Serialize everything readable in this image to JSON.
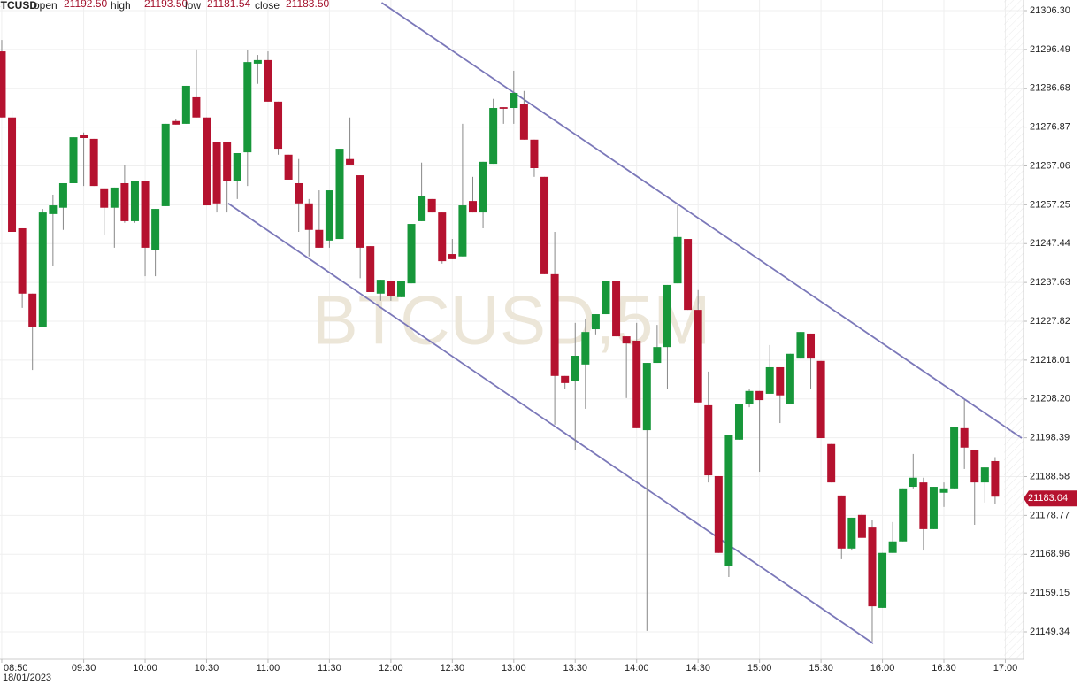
{
  "chart_data": {
    "type": "candlestick",
    "symbol": "BTCUSD",
    "watermark": "BTCUSD,5M",
    "header": [
      {
        "label": "open",
        "value": "21192.50"
      },
      {
        "label": "high",
        "value": "21193.50"
      },
      {
        "label": "low",
        "value": "21181.54"
      },
      {
        "label": "close",
        "value": "21183.50"
      }
    ],
    "date_label": "18/01/2023",
    "up_color": "#17973a",
    "down_color": "#b5122f",
    "grid": true,
    "open": [
      21296.0,
      21279.3,
      21251.3,
      21234.8,
      21226.3,
      21254.9,
      21256.5,
      21262.7,
      21274.8,
      21273.9,
      21261.4,
      21256.5,
      21262.7,
      21253.1,
      21263.2,
      21245.9,
      21256.9,
      21278.4,
      21277.7,
      21284.4,
      21279.3,
      21273.2,
      21273.2,
      21263.2,
      21270.5,
      21292.9,
      21293.8,
      21283.3,
      21269.9,
      21262.7,
      21257.6,
      21250.9,
      21248.2,
      21248.6,
      21268.8,
      21264.7,
      21246.8,
      21234.8,
      21237.9,
      21233.9,
      21237.4,
      21253.1,
      21258.7,
      21255.3,
      21244.8,
      21244.2,
      21258.2,
      21255.3,
      21267.6,
      21281.9,
      21281.7,
      21282.8,
      21273.7,
      21264.3,
      21239.7,
      21214.0,
      21212.8,
      21216.9,
      21225.8,
      21229.6,
      21237.9,
      21224.0,
      21222.9,
      21200.3,
      21217.3,
      21221.3,
      21237.4,
      21248.6,
      21230.7,
      21206.6,
      21188.7,
      21165.9,
      21197.9,
      21207.0,
      21210.2,
      21209.5,
      21216.2,
      21207.0,
      21218.4,
      21224.7,
      21217.8,
      21196.8,
      21183.8,
      21170.4,
      21178.9,
      21175.7,
      21155.4,
      21169.3,
      21172.2,
      21186.0,
      21187.1,
      21175.3,
      21184.5,
      21185.6,
      21200.8,
      21195.4,
      21187.1,
      21192.5
    ],
    "high": [
      21298.9,
      21281.0,
      21251.3,
      21234.8,
      21256.2,
      21259.8,
      21262.7,
      21274.3,
      21275.5,
      21273.9,
      21261.4,
      21261.6,
      21267.2,
      21263.2,
      21263.2,
      21256.2,
      21277.7,
      21278.8,
      21287.3,
      21296.5,
      21279.3,
      21273.2,
      21273.2,
      21270.3,
      21296.3,
      21295.1,
      21296.0,
      21283.3,
      21269.9,
      21268.8,
      21258.7,
      21260.9,
      21260.9,
      21271.4,
      21279.3,
      21264.7,
      21246.8,
      21238.3,
      21237.9,
      21237.9,
      21252.4,
      21267.9,
      21258.7,
      21255.3,
      21248.6,
      21277.7,
      21264.3,
      21268.1,
      21284.0,
      21281.9,
      21291.1,
      21286.0,
      21273.7,
      21264.3,
      21250.4,
      21214.0,
      21227.4,
      21228.5,
      21229.6,
      21237.9,
      21237.9,
      21224.0,
      21227.4,
      21217.3,
      21226.9,
      21237.0,
      21257.1,
      21248.6,
      21235.7,
      21215.1,
      21188.7,
      21199.0,
      21207.0,
      21210.6,
      21210.2,
      21221.8,
      21216.2,
      21219.6,
      21225.1,
      21224.7,
      21217.8,
      21196.8,
      21183.8,
      21178.2,
      21179.3,
      21177.5,
      21169.3,
      21177.1,
      21185.6,
      21194.3,
      21188.3,
      21186.0,
      21187.1,
      21201.2,
      21207.9,
      21195.4,
      21190.9,
      21193.5
    ],
    "low": [
      21279.3,
      21250.4,
      21231.2,
      21215.5,
      21226.3,
      21241.9,
      21250.9,
      21262.7,
      21262.0,
      21262.0,
      21249.7,
      21246.4,
      21252.7,
      21252.7,
      21239.2,
      21239.2,
      21256.9,
      21277.5,
      21277.7,
      21279.3,
      21257.1,
      21255.3,
      21255.3,
      21258.7,
      21262.0,
      21287.8,
      21283.3,
      21269.9,
      21263.6,
      21250.4,
      21244.2,
      21246.4,
      21246.4,
      21248.6,
      21267.4,
      21238.7,
      21235.2,
      21233.0,
      21233.0,
      21233.9,
      21237.4,
      21253.1,
      21255.3,
      21242.4,
      21243.5,
      21244.2,
      21255.3,
      21251.3,
      21267.6,
      21277.7,
      21277.7,
      21273.7,
      21264.3,
      21239.7,
      21201.7,
      21210.6,
      21195.4,
      21205.7,
      21224.5,
      21229.6,
      21224.0,
      21208.4,
      21200.8,
      21149.6,
      21217.3,
      21210.6,
      21237.4,
      21230.7,
      21207.3,
      21187.1,
      21169.3,
      21163.2,
      21197.9,
      21206.1,
      21189.8,
      21209.5,
      21202.1,
      21207.0,
      21218.4,
      21210.6,
      21198.3,
      21187.1,
      21167.7,
      21169.9,
      21173.1,
      21146.9,
      21155.4,
      21169.3,
      21172.2,
      21185.6,
      21169.9,
      21175.3,
      21180.9,
      21185.6,
      21190.5,
      21176.4,
      21182.0,
      21181.54
    ],
    "close": [
      21279.3,
      21250.4,
      21234.8,
      21226.3,
      21255.3,
      21257.1,
      21262.7,
      21274.3,
      21274.1,
      21262.0,
      21256.5,
      21261.6,
      21253.1,
      21263.2,
      21246.4,
      21256.2,
      21277.7,
      21277.5,
      21287.3,
      21279.3,
      21257.1,
      21257.6,
      21263.2,
      21270.3,
      21293.3,
      21293.8,
      21283.3,
      21271.4,
      21263.6,
      21257.6,
      21250.9,
      21246.4,
      21260.9,
      21271.4,
      21267.4,
      21246.4,
      21235.2,
      21238.3,
      21234.3,
      21237.9,
      21252.4,
      21259.4,
      21255.3,
      21243.0,
      21243.5,
      21257.1,
      21255.3,
      21268.1,
      21281.7,
      21281.5,
      21285.5,
      21273.7,
      21266.5,
      21239.7,
      21214.0,
      21212.2,
      21219.1,
      21225.1,
      21229.6,
      21237.9,
      21224.0,
      21222.2,
      21200.8,
      21217.3,
      21221.3,
      21237.0,
      21249.1,
      21230.7,
      21207.3,
      21188.9,
      21169.3,
      21199.0,
      21207.0,
      21210.2,
      21207.9,
      21216.2,
      21209.1,
      21219.6,
      21225.1,
      21218.4,
      21198.3,
      21187.1,
      21170.4,
      21178.2,
      21173.1,
      21155.8,
      21169.3,
      21172.2,
      21185.6,
      21188.3,
      21175.3,
      21186.0,
      21185.6,
      21201.2,
      21195.9,
      21187.1,
      21190.9,
      21183.5
    ],
    "last_price": 21183.04,
    "xlim": [
      -0.17,
      99.6
    ],
    "xticks": [
      {
        "value": 0,
        "label": "08:50"
      },
      {
        "value": 8,
        "label": "09:30"
      },
      {
        "value": 14,
        "label": "10:00"
      },
      {
        "value": 20,
        "label": "10:30"
      },
      {
        "value": 26,
        "label": "11:00"
      },
      {
        "value": 32,
        "label": "11:30"
      },
      {
        "value": 38,
        "label": "12:00"
      },
      {
        "value": 44,
        "label": "12:30"
      },
      {
        "value": 50,
        "label": "13:00"
      },
      {
        "value": 56,
        "label": "13:30"
      },
      {
        "value": 62,
        "label": "14:00"
      },
      {
        "value": 68,
        "label": "14:30"
      },
      {
        "value": 74,
        "label": "15:00"
      },
      {
        "value": 80,
        "label": "15:30"
      },
      {
        "value": 86,
        "label": "16:00"
      },
      {
        "value": 92,
        "label": "16:30"
      },
      {
        "value": 98,
        "label": "17:00"
      }
    ],
    "ylim": [
      21142.41,
      21308.98
    ],
    "yticks": [
      {
        "value": 21306.3,
        "label": "21306.30"
      },
      21296.49,
      21286.68,
      21276.87,
      21267.06,
      21257.25,
      21247.44,
      21237.63,
      21227.82,
      21218.01,
      {
        "value": 21208.2,
        "label": "21208.20"
      },
      21198.39,
      21188.58,
      21178.77,
      21168.96,
      21159.15,
      21149.34
    ],
    "trend_line_color": "#7b78b9",
    "trend_lines": [
      {
        "x": [
          37.1,
          99.6
        ],
        "y": [
          21308.3,
          21198.3
        ]
      },
      {
        "x": [
          22.1,
          85.1
        ],
        "y": [
          21257.6,
          21146.4
        ]
      }
    ]
  }
}
